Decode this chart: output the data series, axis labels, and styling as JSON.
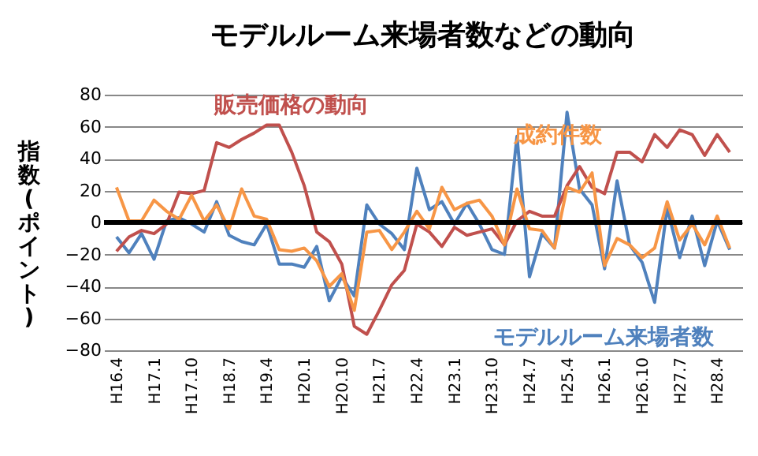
{
  "chart_data": {
    "type": "line",
    "title": "モデルルーム来場者数などの動向",
    "ylabel": "指数(ポイント)",
    "categories": [
      "H16.4",
      null,
      null,
      "H17.1",
      null,
      null,
      "H17.10",
      null,
      null,
      "H18.7",
      null,
      null,
      "H19.4",
      null,
      null,
      "H20.1",
      null,
      null,
      "H20.10",
      null,
      null,
      "H21.7",
      null,
      null,
      "H22.4",
      null,
      null,
      "H23.1",
      null,
      null,
      "H23.10",
      null,
      null,
      "H24.7",
      null,
      null,
      "H25.4",
      null,
      null,
      "H26.1",
      null,
      null,
      "H26.10",
      null,
      null,
      "H27.7",
      null,
      null,
      "H28.4",
      null
    ],
    "series": [
      {
        "name": "モデルルーム来場者数",
        "color": "#4f81bd",
        "values": [
          -9,
          -19,
          -7,
          -23,
          1,
          3,
          -1,
          -6,
          13,
          -8,
          -12,
          -14,
          -1,
          -26,
          -26,
          -28,
          -15,
          -49,
          -34,
          -46,
          11,
          -1,
          -7,
          -17,
          34,
          8,
          13,
          -1,
          12,
          -1,
          -17,
          -20,
          54,
          -34,
          -7,
          -16,
          69,
          21,
          11,
          -29,
          26,
          -14,
          -25,
          -50,
          9,
          -22,
          4,
          -27,
          1,
          -17
        ]
      },
      {
        "name": "販売価格の動向",
        "color": "#c0504d",
        "values": [
          -18,
          -9,
          -5,
          -7,
          -1,
          19,
          18,
          20,
          50,
          47,
          52,
          56,
          61,
          61,
          44,
          23,
          -6,
          -12,
          -26,
          -65,
          -70,
          -55,
          -39,
          -30,
          -1,
          -6,
          -15,
          -3,
          -8,
          -6,
          -4,
          -14,
          1,
          7,
          4,
          4,
          23,
          35,
          22,
          18,
          44,
          44,
          38,
          55,
          47,
          58,
          55,
          42,
          55,
          44
        ]
      },
      {
        "name": "成約件数",
        "color": "#f79646",
        "values": [
          22,
          1,
          1,
          14,
          7,
          2,
          17,
          1,
          11,
          -4,
          21,
          4,
          2,
          -17,
          -18,
          -16,
          -24,
          -40,
          -32,
          -55,
          -6,
          -5,
          -17,
          -6,
          7,
          -4,
          22,
          8,
          12,
          14,
          4,
          -14,
          21,
          -4,
          -5,
          -16,
          22,
          19,
          31,
          -27,
          -10,
          -14,
          -22,
          -16,
          13,
          -11,
          -1,
          -14,
          4,
          -16
        ]
      }
    ],
    "ylim": [
      -80,
      80
    ],
    "yticks": [
      -80,
      -60,
      -40,
      -20,
      0,
      20,
      40,
      60,
      80
    ],
    "grid": "y",
    "ref_lines": [
      {
        "axis": "y",
        "value": 0,
        "color": "#000000"
      }
    ]
  }
}
